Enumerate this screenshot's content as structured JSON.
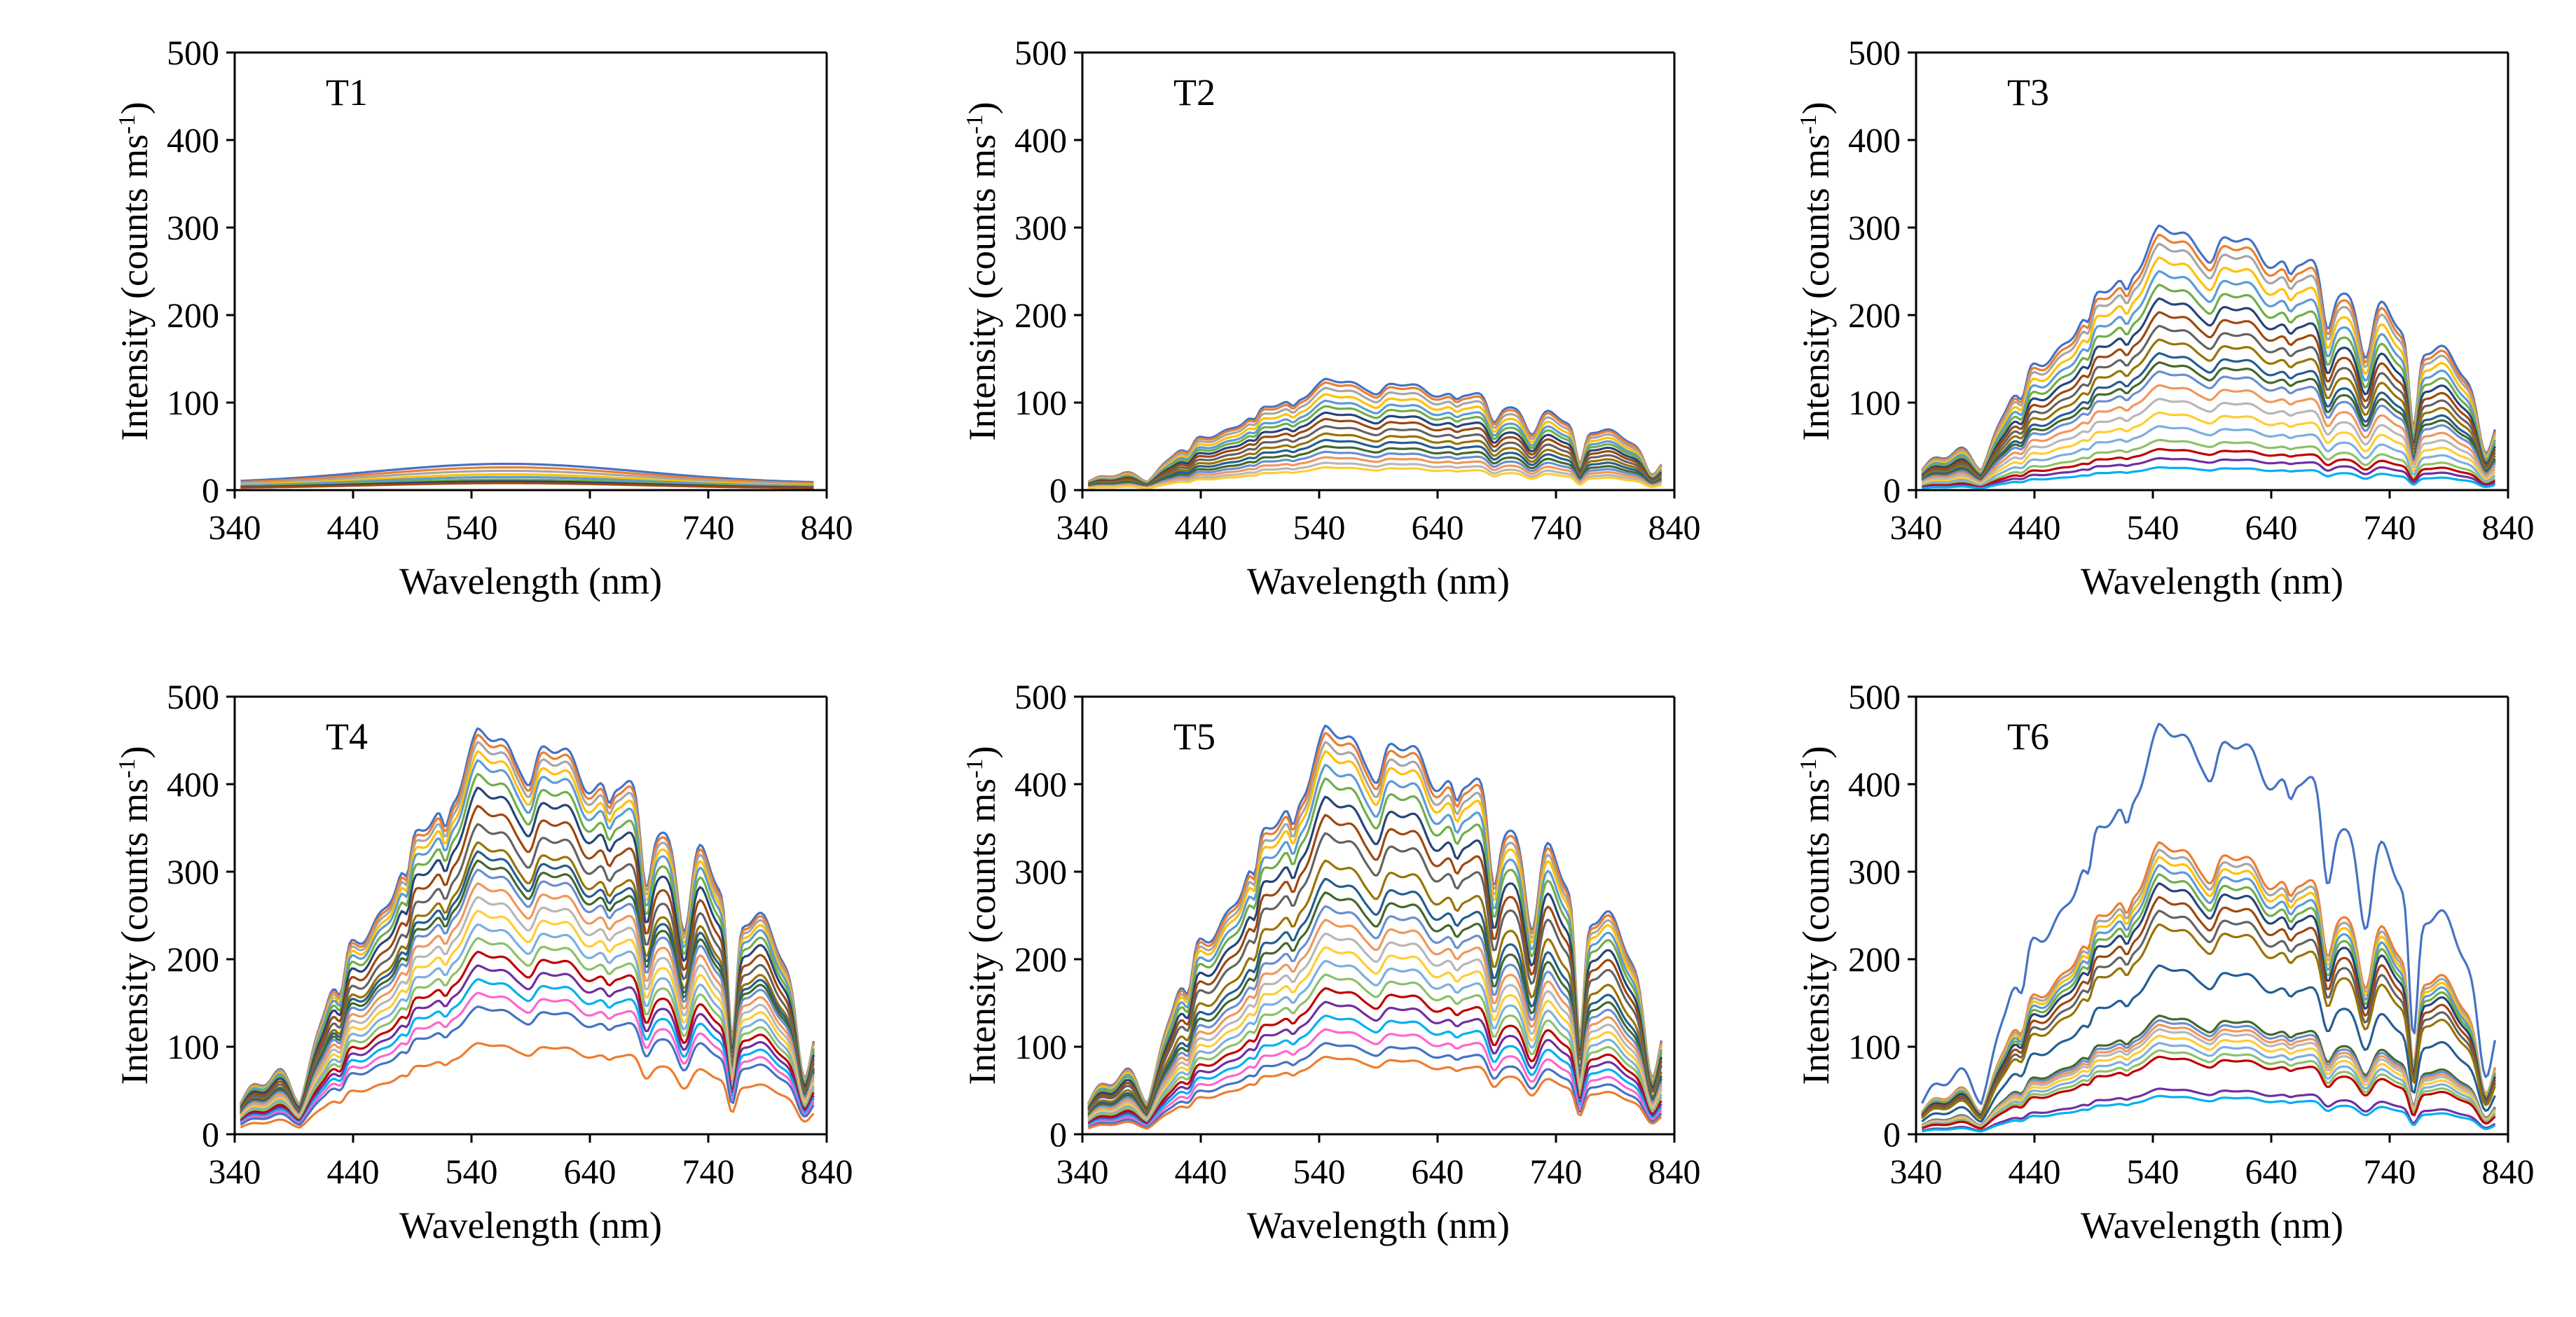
{
  "palette": [
    "#4472c4",
    "#ed7d31",
    "#a5a5a5",
    "#ffc000",
    "#5b9bd5",
    "#70ad47",
    "#264478",
    "#9e480e",
    "#636363",
    "#997300",
    "#255e91",
    "#43682b",
    "#698ed0",
    "#f1975a",
    "#b7b7b7",
    "#ffcd33",
    "#7cafdd",
    "#8cc168",
    "#c00000",
    "#7030a0",
    "#00b0f0",
    "#ff66cc"
  ],
  "chart_data": [
    {
      "type": "line",
      "title": "T1",
      "xlabel": "Wavelength (nm)",
      "ylabel_main": "Intensity (counts ms",
      "ylabel_sup": "-1",
      "ylabel_close": ")",
      "xlim": [
        340,
        840
      ],
      "ylim": [
        0,
        500
      ],
      "xticks": [
        340,
        440,
        540,
        640,
        740,
        840
      ],
      "yticks": [
        0,
        100,
        200,
        300,
        400,
        500
      ],
      "x_range": [
        345,
        830
      ],
      "profile": "smooth",
      "series_peak_intensities": [
        30,
        26,
        22,
        18,
        15,
        12,
        10,
        8
      ],
      "baseline_ratio": 0.25
    },
    {
      "type": "line",
      "title": "T2",
      "xlabel": "Wavelength (nm)",
      "ylabel_main": "Intensity (counts ms",
      "ylabel_sup": "-1",
      "ylabel_close": ")",
      "xlim": [
        340,
        840
      ],
      "ylim": [
        0,
        500
      ],
      "xticks": [
        340,
        440,
        540,
        640,
        740,
        840
      ],
      "yticks": [
        0,
        100,
        200,
        300,
        400,
        500
      ],
      "x_range": [
        345,
        830
      ],
      "profile": "solar",
      "series_peak_intensities": [
        122,
        118,
        112,
        105,
        98,
        92,
        85,
        78,
        70,
        62,
        55,
        48,
        42,
        36,
        30,
        25
      ],
      "baseline_ratio": 0.12
    },
    {
      "type": "line",
      "title": "T3",
      "xlabel": "Wavelength (nm)",
      "ylabel_main": "Intensity (counts ms",
      "ylabel_sup": "-1",
      "ylabel_close": ")",
      "xlim": [
        340,
        840
      ],
      "ylim": [
        0,
        500
      ],
      "xticks": [
        340,
        440,
        540,
        640,
        740,
        840
      ],
      "yticks": [
        0,
        100,
        200,
        300,
        400,
        500
      ],
      "x_range": [
        345,
        830
      ],
      "profile": "solar",
      "series_peak_intensities": [
        290,
        280,
        270,
        255,
        240,
        225,
        210,
        195,
        180,
        165,
        150,
        140,
        130,
        115,
        100,
        85,
        70,
        55,
        45,
        35,
        25
      ],
      "baseline_ratio": 0.12
    },
    {
      "type": "line",
      "title": "T4",
      "xlabel": "Wavelength (nm)",
      "ylabel_main": "Intensity (counts ms",
      "ylabel_sup": "-1",
      "ylabel_close": ")",
      "xlim": [
        340,
        840
      ],
      "ylim": [
        0,
        500
      ],
      "xticks": [
        340,
        440,
        540,
        640,
        740,
        840
      ],
      "yticks": [
        0,
        100,
        200,
        300,
        400,
        500
      ],
      "x_range": [
        345,
        830
      ],
      "profile": "solar",
      "series_peak_intensities": [
        445,
        438,
        430,
        420,
        410,
        395,
        380,
        360,
        340,
        320,
        310,
        300,
        290,
        275,
        260,
        245,
        230,
        215,
        200,
        185,
        170,
        155,
        140,
        100
      ],
      "baseline_ratio": 0.12
    },
    {
      "type": "line",
      "title": "T5",
      "xlabel": "Wavelength (nm)",
      "ylabel_main": "Intensity (counts ms",
      "ylabel_sup": "-1",
      "ylabel_close": ")",
      "xlim": [
        340,
        840
      ],
      "ylim": [
        0,
        500
      ],
      "xticks": [
        340,
        440,
        540,
        640,
        740,
        840
      ],
      "yticks": [
        0,
        100,
        200,
        300,
        400,
        500
      ],
      "x_range": [
        345,
        830
      ],
      "profile": "solar",
      "series_peak_intensities": [
        448,
        440,
        430,
        420,
        405,
        390,
        370,
        350,
        330,
        300,
        280,
        265,
        250,
        235,
        220,
        205,
        190,
        175,
        160,
        145,
        130,
        115,
        100,
        85
      ],
      "baseline_ratio": 0.12
    },
    {
      "type": "line",
      "title": "T6",
      "xlabel": "Wavelength (nm)",
      "ylabel_main": "Intensity (counts ms",
      "ylabel_sup": "-1",
      "ylabel_close": ")",
      "xlim": [
        340,
        840
      ],
      "ylim": [
        0,
        500
      ],
      "xticks": [
        340,
        440,
        540,
        640,
        740,
        840
      ],
      "yticks": [
        0,
        100,
        200,
        300,
        400,
        500
      ],
      "x_range": [
        345,
        830
      ],
      "profile": "solar",
      "series_peak_intensities": [
        450,
        320,
        312,
        304,
        295,
        285,
        275,
        260,
        245,
        230,
        185,
        130,
        125,
        120,
        115,
        108,
        100,
        92,
        85,
        50,
        42
      ],
      "baseline_ratio": 0.14
    }
  ]
}
